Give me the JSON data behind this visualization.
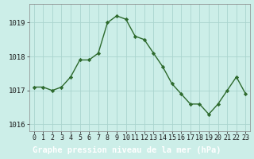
{
  "x": [
    0,
    1,
    2,
    3,
    4,
    5,
    6,
    7,
    8,
    9,
    10,
    11,
    12,
    13,
    14,
    15,
    16,
    17,
    18,
    19,
    20,
    21,
    22,
    23
  ],
  "y": [
    1017.1,
    1017.1,
    1017.0,
    1017.1,
    1017.4,
    1017.9,
    1017.9,
    1018.1,
    1019.0,
    1019.2,
    1019.1,
    1018.6,
    1018.5,
    1018.1,
    1017.7,
    1017.2,
    1016.9,
    1016.6,
    1016.6,
    1016.3,
    1016.6,
    1017.0,
    1017.4,
    1016.9
  ],
  "line_color": "#2d6a2d",
  "marker": "D",
  "marker_size": 2.2,
  "linewidth": 1.0,
  "bg_color": "#cceee8",
  "plot_bg_color": "#cceee8",
  "grid_color": "#aad4ce",
  "label_bg_color": "#2d6a2d",
  "label_text_color": "#ffffff",
  "xlabel": "Graphe pression niveau de la mer (hPa)",
  "xlabel_fontsize": 7.5,
  "tick_fontsize": 6.0,
  "ytick_fontsize": 6.5,
  "ylim": [
    1015.8,
    1019.55
  ],
  "yticks": [
    1016,
    1017,
    1018,
    1019
  ],
  "xticks": [
    0,
    1,
    2,
    3,
    4,
    5,
    6,
    7,
    8,
    9,
    10,
    11,
    12,
    13,
    14,
    15,
    16,
    17,
    18,
    19,
    20,
    21,
    22,
    23
  ]
}
